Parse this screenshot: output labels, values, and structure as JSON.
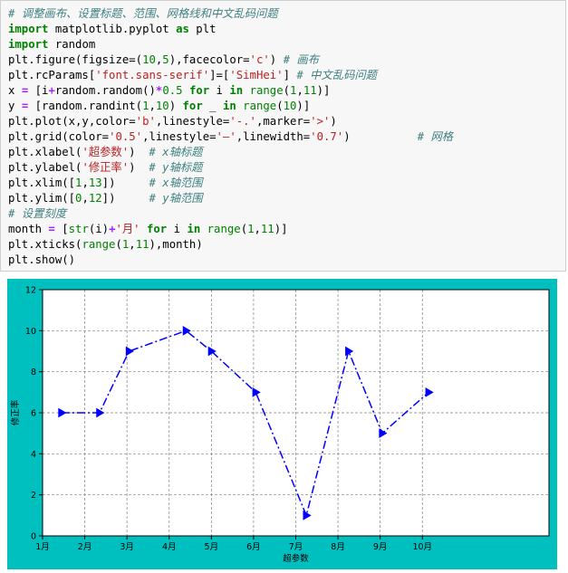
{
  "code_lines": [
    [
      [
        "c",
        "# 调整画布、设置标题、范围、网格线和中文乱码问题"
      ]
    ],
    [
      [
        "k",
        "import"
      ],
      [
        "p",
        " matplotlib.pyplot "
      ],
      [
        "k",
        "as"
      ],
      [
        "p",
        " plt"
      ]
    ],
    [
      [
        "k",
        "import"
      ],
      [
        "p",
        " random"
      ]
    ],
    [
      [
        "p",
        "plt.figure(figsize=("
      ],
      [
        "n",
        "10"
      ],
      [
        "p",
        ","
      ],
      [
        "n",
        "5"
      ],
      [
        "p",
        "),facecolor="
      ],
      [
        "s",
        "'c'"
      ],
      [
        "p",
        ") "
      ],
      [
        "c",
        "# 画布"
      ]
    ],
    [
      [
        "p",
        "plt.rcParams["
      ],
      [
        "s",
        "'font.sans-serif'"
      ],
      [
        "p",
        "]=["
      ],
      [
        "s",
        "'SimHei'"
      ],
      [
        "p",
        "] "
      ],
      [
        "c",
        "# 中文乱码问题"
      ]
    ],
    [
      [
        "p",
        "x "
      ],
      [
        "o",
        "="
      ],
      [
        "p",
        " [i"
      ],
      [
        "o",
        "+"
      ],
      [
        "p",
        "random.random()"
      ],
      [
        "o",
        "*"
      ],
      [
        "n",
        "0.5"
      ],
      [
        "p",
        " "
      ],
      [
        "k",
        "for"
      ],
      [
        "p",
        " i "
      ],
      [
        "k",
        "in"
      ],
      [
        "p",
        " "
      ],
      [
        "b",
        "range"
      ],
      [
        "p",
        "("
      ],
      [
        "n",
        "1"
      ],
      [
        "p",
        ","
      ],
      [
        "n",
        "11"
      ],
      [
        "p",
        ")]"
      ]
    ],
    [
      [
        "p",
        "y "
      ],
      [
        "o",
        "="
      ],
      [
        "p",
        " [random.randint("
      ],
      [
        "n",
        "1"
      ],
      [
        "p",
        ","
      ],
      [
        "n",
        "10"
      ],
      [
        "p",
        ") "
      ],
      [
        "k",
        "for"
      ],
      [
        "p",
        " _ "
      ],
      [
        "k",
        "in"
      ],
      [
        "p",
        " "
      ],
      [
        "b",
        "range"
      ],
      [
        "p",
        "("
      ],
      [
        "n",
        "10"
      ],
      [
        "p",
        ")]"
      ]
    ],
    [
      [
        "p",
        "plt.plot(x,y,color="
      ],
      [
        "s",
        "'b'"
      ],
      [
        "p",
        ",linestyle="
      ],
      [
        "s",
        "'-.'"
      ],
      [
        "p",
        ",marker="
      ],
      [
        "s",
        "'>'"
      ],
      [
        "p",
        ")"
      ]
    ],
    [
      [
        "p",
        "plt.grid(color="
      ],
      [
        "s",
        "'0.5'"
      ],
      [
        "p",
        ",linestyle="
      ],
      [
        "s",
        "'—'"
      ],
      [
        "p",
        ",linewidth="
      ],
      [
        "s",
        "'0.7'"
      ],
      [
        "p",
        ")          "
      ],
      [
        "c",
        "# 网格"
      ]
    ],
    [
      [
        "p",
        "plt.xlabel("
      ],
      [
        "s",
        "'超参数'"
      ],
      [
        "p",
        ")  "
      ],
      [
        "c",
        "# x轴标题"
      ]
    ],
    [
      [
        "p",
        "plt.ylabel("
      ],
      [
        "s",
        "'修正率'"
      ],
      [
        "p",
        ")  "
      ],
      [
        "c",
        "# y轴标题"
      ]
    ],
    [
      [
        "p",
        "plt.xlim(["
      ],
      [
        "n",
        "1"
      ],
      [
        "p",
        ","
      ],
      [
        "n",
        "13"
      ],
      [
        "p",
        "])     "
      ],
      [
        "c",
        "# x轴范围"
      ]
    ],
    [
      [
        "p",
        "plt.ylim(["
      ],
      [
        "n",
        "0"
      ],
      [
        "p",
        ","
      ],
      [
        "n",
        "12"
      ],
      [
        "p",
        "])     "
      ],
      [
        "c",
        "# y轴范围"
      ]
    ],
    [
      [
        "c",
        "# 设置刻度"
      ]
    ],
    [
      [
        "p",
        "month "
      ],
      [
        "o",
        "="
      ],
      [
        "p",
        " ["
      ],
      [
        "b",
        "str"
      ],
      [
        "p",
        "(i)"
      ],
      [
        "o",
        "+"
      ],
      [
        "s",
        "'月'"
      ],
      [
        "p",
        " "
      ],
      [
        "k",
        "for"
      ],
      [
        "p",
        " i "
      ],
      [
        "k",
        "in"
      ],
      [
        "p",
        " "
      ],
      [
        "b",
        "range"
      ],
      [
        "p",
        "("
      ],
      [
        "n",
        "1"
      ],
      [
        "p",
        ","
      ],
      [
        "n",
        "11"
      ],
      [
        "p",
        ")]"
      ]
    ],
    [
      [
        "p",
        "plt.xticks("
      ],
      [
        "b",
        "range"
      ],
      [
        "p",
        "("
      ],
      [
        "n",
        "1"
      ],
      [
        "p",
        ","
      ],
      [
        "n",
        "11"
      ],
      [
        "p",
        "),month)"
      ]
    ],
    [
      [
        "p",
        "plt.show()"
      ]
    ]
  ],
  "colors": {
    "figure_facecolor": "#00bfbf",
    "axes_facecolor": "#ffffff",
    "line": "#0000ff",
    "grid": "#808080"
  },
  "chart_data": {
    "type": "line",
    "title": "",
    "xlabel": "超参数",
    "ylabel": "修正率",
    "xlim": [
      1,
      13
    ],
    "ylim": [
      0,
      12
    ],
    "x_ticks": [
      1,
      2,
      3,
      4,
      5,
      6,
      7,
      8,
      9,
      10
    ],
    "x_tick_labels": [
      "1月",
      "2月",
      "3月",
      "4月",
      "5月",
      "6月",
      "7月",
      "8月",
      "9月",
      "10月"
    ],
    "y_ticks": [
      0,
      2,
      4,
      6,
      8,
      10,
      12
    ],
    "y_tick_labels": [
      "0",
      "2",
      "4",
      "6",
      "8",
      "10",
      "12"
    ],
    "grid": true,
    "linestyle": "-.",
    "marker": ">",
    "series": [
      {
        "x": [
          1.45,
          2.35,
          3.05,
          4.4,
          5.0,
          6.05,
          7.25,
          8.25,
          9.05,
          10.15
        ],
        "y": [
          6,
          6,
          9,
          10,
          9,
          7,
          1,
          9,
          5,
          7
        ]
      }
    ]
  }
}
